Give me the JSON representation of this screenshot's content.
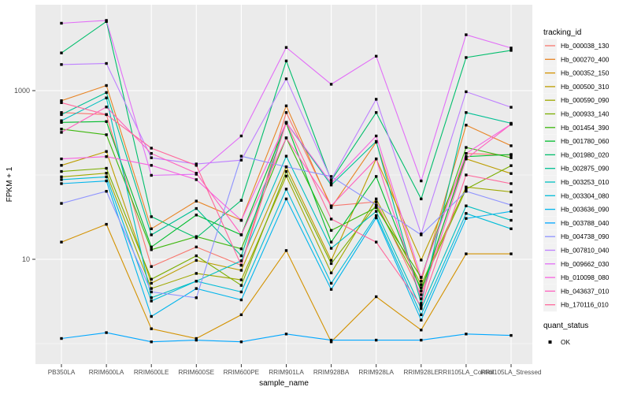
{
  "figure": {
    "background": "#FFFFFF",
    "panel_background": "#EBEBEB",
    "grid_color": "#FFFFFF",
    "tick_label_color": "#4D4D4D",
    "axis_title_color": "#000000",
    "point_color": "#000000",
    "legend_key_background": "#F2F2F2"
  },
  "chart_data": {
    "type": "line",
    "title": "",
    "xlabel": "sample_name",
    "ylabel": "FPKM + 1",
    "y_scale": "log10",
    "y_ticks": [
      {
        "value": 1000,
        "label": "1000"
      },
      {
        "value": 10,
        "label": "10"
      }
    ],
    "y_minor_gridlines": [
      100,
      1
    ],
    "ylim": [
      1,
      9500
    ],
    "grid": "on",
    "legend_position": "right",
    "legend": {
      "title": "tracking_id",
      "secondary_title": "quant_status",
      "secondary_items": [
        {
          "label": "OK",
          "marker": "black-square"
        }
      ]
    },
    "categories": [
      "PB350LA",
      "RRIM600LA",
      "RRIM600LE",
      "RRIM600SE",
      "RRIM600PE",
      "RRIM901LA",
      "RRIM928BA",
      "RRIM928LA",
      "RRIM928LE",
      "RRII105LA_Control",
      "RRII105LA_Stressed"
    ],
    "series": [
      {
        "name": "Hb_000038_130",
        "color": "#F8766D",
        "values": [
          550,
          520,
          8.2,
          14,
          8.5,
          550,
          43,
          48,
          3.8,
          180,
          172
        ]
      },
      {
        "name": "Hb_000270_400",
        "color": "#E88526",
        "values": [
          760,
          1150,
          23,
          49,
          29,
          660,
          41,
          245,
          5.5,
          390,
          222
        ]
      },
      {
        "name": "Hb_000352_150",
        "color": "#D39200",
        "values": [
          16,
          26,
          1.5,
          1.15,
          2.2,
          12.7,
          1.05,
          3.6,
          1.45,
          11.6,
          11.6
        ]
      },
      {
        "name": "Hb_000500_310",
        "color": "#BC9D00",
        "values": [
          130,
          190,
          5.2,
          9.7,
          7.4,
          125,
          9.7,
          155,
          9.8,
          155,
          104
        ]
      },
      {
        "name": "Hb_000590_090",
        "color": "#9FA800",
        "values": [
          95,
          105,
          4.5,
          6.8,
          5.7,
          97,
          6.9,
          52,
          5.0,
          72,
          63
        ]
      },
      {
        "name": "Hb_000933_140",
        "color": "#7BAE00",
        "values": [
          110,
          120,
          5.8,
          11,
          4.9,
          110,
          8.9,
          44,
          4.6,
          68,
          129
        ]
      },
      {
        "name": "Hb_001454_390",
        "color": "#3DB70D",
        "values": [
          350,
          300,
          13,
          18.6,
          13.3,
          275,
          22,
          41,
          6.1,
          212,
          160
        ]
      },
      {
        "name": "Hb_001780_060",
        "color": "#00BC2D",
        "values": [
          420,
          430,
          14,
          33.5,
          19.5,
          410,
          16,
          96,
          4.2,
          165,
          175
        ]
      },
      {
        "name": "Hb_001980_020",
        "color": "#00BE6C",
        "values": [
          2800,
          6600,
          32,
          18,
          50,
          2250,
          86,
          550,
          52,
          2470,
          3000
        ]
      },
      {
        "name": "Hb_002875_090",
        "color": "#00C094",
        "values": [
          520,
          950,
          19.5,
          40,
          11,
          420,
          76,
          250,
          3.0,
          550,
          410
        ]
      },
      {
        "name": "Hb_003253_010",
        "color": "#00BFC0",
        "values": [
          440,
          820,
          3.5,
          5.5,
          9.6,
          167,
          13.5,
          37,
          2.6,
          43,
          29
        ]
      },
      {
        "name": "Hb_003304_080",
        "color": "#00BCD8",
        "values": [
          88,
          95,
          3.2,
          5.5,
          4.1,
          68,
          5.2,
          33,
          2.2,
          35,
          23
        ]
      },
      {
        "name": "Hb_003636_090",
        "color": "#00B5EC",
        "values": [
          79,
          85,
          2.1,
          4.5,
          3.3,
          52,
          4.4,
          31,
          1.9,
          30.5,
          37
        ]
      },
      {
        "name": "Hb_003788_040",
        "color": "#00A7FF",
        "values": [
          1.15,
          1.35,
          1.05,
          1.1,
          1.05,
          1.3,
          1.1,
          1.1,
          1.1,
          1.3,
          1.25
        ]
      },
      {
        "name": "Hb_004738_090",
        "color": "#8E93FF",
        "values": [
          46,
          64,
          4.1,
          3.5,
          167,
          125,
          96,
          44,
          19.5,
          64,
          44
        ]
      },
      {
        "name": "Hb_007810_040",
        "color": "#BE80FF",
        "values": [
          2040,
          2100,
          160,
          135,
          150,
          1380,
          88,
          790,
          20,
          970,
          635
        ]
      },
      {
        "name": "Hb_009662_030",
        "color": "#E26EF7",
        "values": [
          6300,
          6800,
          99,
          102,
          290,
          3250,
          1190,
          2560,
          85,
          4600,
          3200
        ]
      },
      {
        "name": "Hb_010098_080",
        "color": "#F763DF",
        "values": [
          155,
          165,
          130,
          88,
          29,
          420,
          80,
          290,
          6.1,
          180,
          400
        ]
      },
      {
        "name": "Hb_043637_010",
        "color": "#FF62BF",
        "values": [
          320,
          640,
          180,
          105,
          19.5,
          275,
          43,
          155,
          3.4,
          155,
          400
        ]
      },
      {
        "name": "Hb_170116_010",
        "color": "#FF689C",
        "values": [
          720,
          520,
          208,
          130,
          8.5,
          420,
          30,
          16,
          2.8,
          100,
          79
        ]
      }
    ]
  }
}
